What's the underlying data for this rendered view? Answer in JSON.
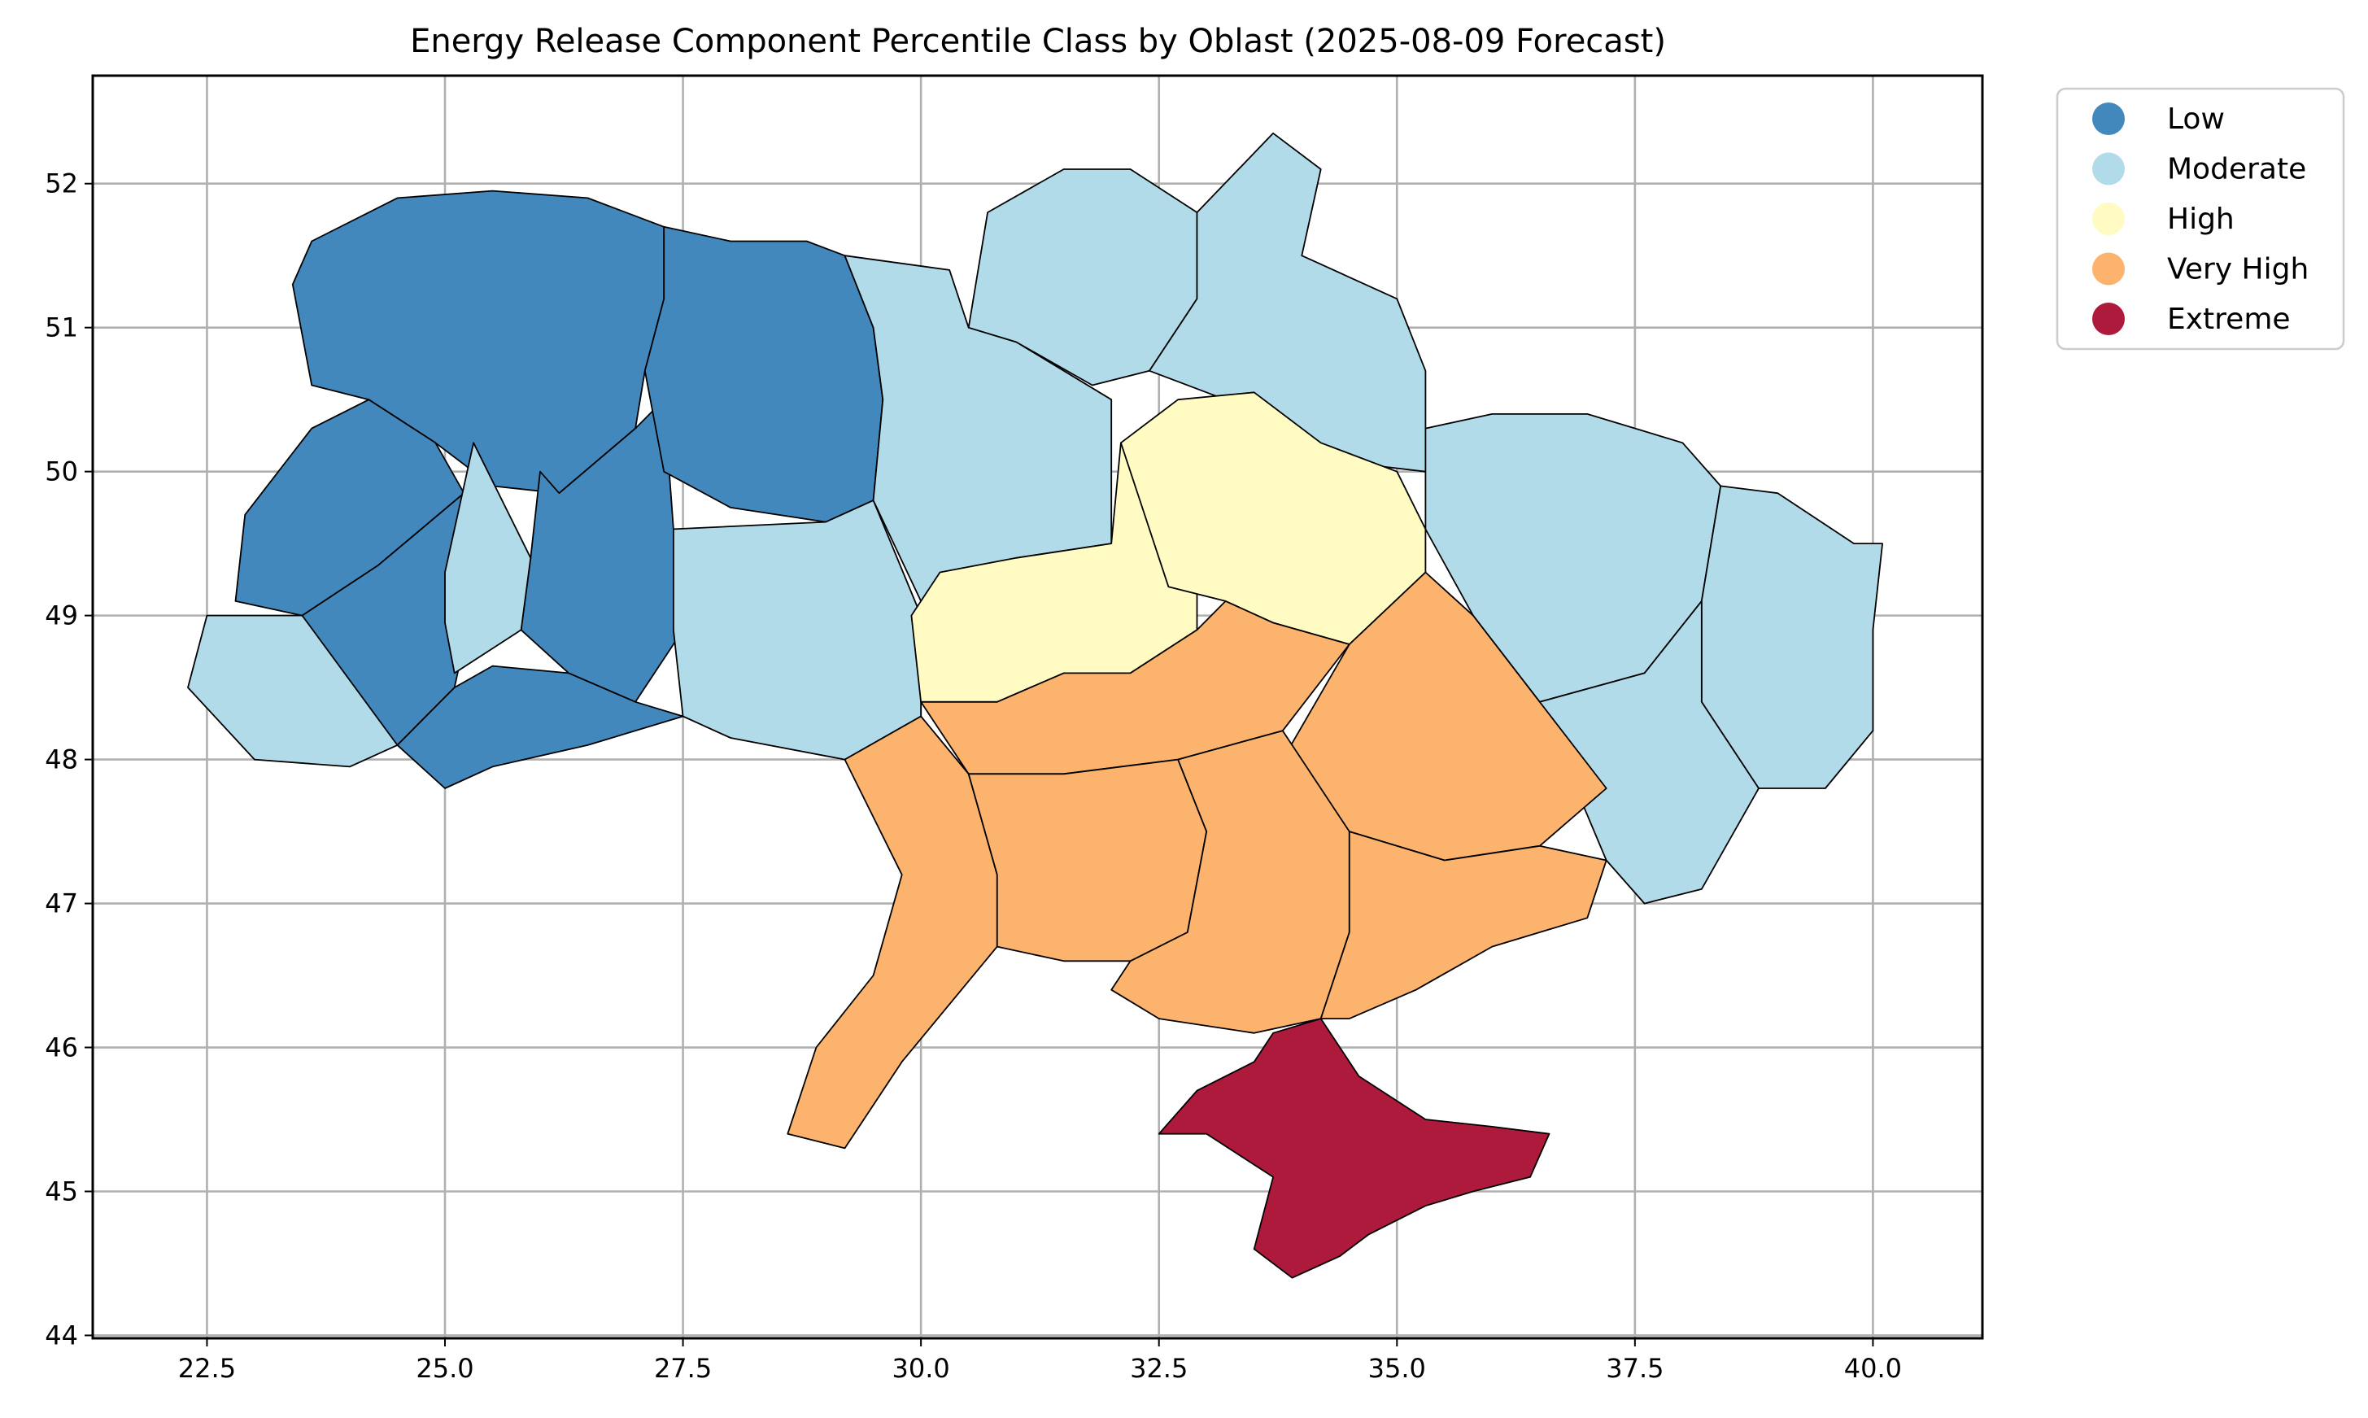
{
  "chart_data": {
    "type": "choropleth",
    "title": "Energy Release Component Percentile Class by Oblast (2025-08-09 Forecast)",
    "xlabel": "",
    "ylabel": "",
    "xlim": [
      21.3,
      41.15
    ],
    "ylim": [
      43.98,
      52.75
    ],
    "x_ticks": [
      "22.5",
      "25.0",
      "27.5",
      "30.0",
      "32.5",
      "35.0",
      "37.5",
      "40.0"
    ],
    "y_ticks": [
      "44",
      "45",
      "46",
      "47",
      "48",
      "49",
      "50",
      "51",
      "52"
    ],
    "grid": true,
    "legend_position": "outside-right-top",
    "classes": [
      {
        "name": "Low",
        "color": "#4288bd"
      },
      {
        "name": "Moderate",
        "color": "#b2dbea"
      },
      {
        "name": "High",
        "color": "#fffbc2"
      },
      {
        "name": "Very High",
        "color": "#fbb36e"
      },
      {
        "name": "Extreme",
        "color": "#ad1a3c"
      }
    ],
    "regions": [
      {
        "class": "Low",
        "lonlat": [
          [
            23.6,
            51.6
          ],
          [
            24.5,
            51.9
          ],
          [
            25.5,
            51.95
          ],
          [
            26.5,
            51.9
          ],
          [
            27.3,
            51.7
          ],
          [
            27.3,
            51.2
          ],
          [
            27.1,
            50.7
          ],
          [
            27.0,
            50.3
          ],
          [
            26.2,
            49.85
          ],
          [
            25.5,
            49.9
          ],
          [
            24.9,
            50.2
          ],
          [
            24.2,
            50.5
          ],
          [
            23.6,
            50.6
          ],
          [
            23.4,
            51.3
          ]
        ]
      },
      {
        "class": "Low",
        "lonlat": [
          [
            24.2,
            50.5
          ],
          [
            24.9,
            50.2
          ],
          [
            25.2,
            49.85
          ],
          [
            24.3,
            49.35
          ],
          [
            23.5,
            49.0
          ],
          [
            22.8,
            49.1
          ],
          [
            22.9,
            49.7
          ],
          [
            23.6,
            50.3
          ]
        ]
      },
      {
        "class": "Low",
        "lonlat": [
          [
            26.0,
            50.0
          ],
          [
            26.2,
            49.85
          ],
          [
            27.0,
            50.3
          ],
          [
            27.3,
            50.5
          ],
          [
            27.4,
            49.6
          ],
          [
            27.5,
            48.9
          ],
          [
            27.0,
            48.4
          ],
          [
            26.3,
            48.6
          ],
          [
            25.8,
            48.9
          ],
          [
            25.9,
            49.4
          ]
        ]
      },
      {
        "class": "Low",
        "lonlat": [
          [
            24.3,
            49.35
          ],
          [
            25.2,
            49.85
          ],
          [
            25.3,
            49.1
          ],
          [
            25.1,
            48.5
          ],
          [
            24.5,
            48.1
          ],
          [
            24.0,
            48.3
          ],
          [
            23.5,
            49.0
          ]
        ]
      },
      {
        "class": "Low",
        "lonlat": [
          [
            25.1,
            48.5
          ],
          [
            25.5,
            48.65
          ],
          [
            26.3,
            48.6
          ],
          [
            27.0,
            48.4
          ],
          [
            27.5,
            48.3
          ],
          [
            26.5,
            48.1
          ],
          [
            25.5,
            47.95
          ],
          [
            25.0,
            47.8
          ],
          [
            24.5,
            48.1
          ]
        ]
      },
      {
        "class": "Low",
        "lonlat": [
          [
            27.3,
            51.7
          ],
          [
            28.0,
            51.6
          ],
          [
            28.8,
            51.6
          ],
          [
            29.2,
            51.5
          ],
          [
            29.5,
            51.0
          ],
          [
            29.6,
            50.5
          ],
          [
            29.5,
            49.8
          ],
          [
            29.0,
            49.65
          ],
          [
            28.0,
            49.75
          ],
          [
            27.3,
            50.0
          ],
          [
            27.1,
            50.7
          ],
          [
            27.3,
            51.2
          ]
        ]
      },
      {
        "class": "Moderate",
        "lonlat": [
          [
            22.3,
            48.5
          ],
          [
            22.5,
            49.0
          ],
          [
            23.5,
            49.0
          ],
          [
            24.5,
            48.1
          ],
          [
            24.0,
            47.95
          ],
          [
            23.0,
            48.0
          ]
        ]
      },
      {
        "class": "Moderate",
        "lonlat": [
          [
            25.0,
            49.3
          ],
          [
            25.3,
            50.2
          ],
          [
            25.9,
            49.4
          ],
          [
            25.8,
            48.9
          ],
          [
            25.1,
            48.6
          ],
          [
            25.0,
            48.95
          ]
        ]
      },
      {
        "class": "Moderate",
        "lonlat": [
          [
            27.4,
            49.6
          ],
          [
            29.0,
            49.65
          ],
          [
            29.5,
            49.8
          ],
          [
            30.0,
            49.0
          ],
          [
            30.0,
            48.3
          ],
          [
            29.2,
            48.0
          ],
          [
            28.0,
            48.15
          ],
          [
            27.5,
            48.3
          ],
          [
            27.4,
            48.9
          ]
        ]
      },
      {
        "class": "Moderate",
        "lonlat": [
          [
            29.2,
            51.5
          ],
          [
            30.3,
            51.4
          ],
          [
            30.5,
            51.0
          ],
          [
            31.0,
            50.9
          ],
          [
            32.0,
            50.5
          ],
          [
            32.0,
            49.5
          ],
          [
            31.0,
            49.4
          ],
          [
            30.0,
            49.1
          ],
          [
            29.5,
            49.8
          ],
          [
            29.6,
            50.5
          ],
          [
            29.5,
            51.0
          ]
        ]
      },
      {
        "class": "Moderate",
        "lonlat": [
          [
            30.5,
            51.0
          ],
          [
            30.7,
            51.8
          ],
          [
            31.5,
            52.1
          ],
          [
            32.2,
            52.1
          ],
          [
            32.9,
            51.8
          ],
          [
            32.9,
            51.2
          ],
          [
            32.4,
            50.7
          ],
          [
            31.8,
            50.6
          ],
          [
            31.0,
            50.9
          ]
        ]
      },
      {
        "class": "Moderate",
        "lonlat": [
          [
            32.9,
            51.8
          ],
          [
            33.7,
            52.35
          ],
          [
            34.2,
            52.1
          ],
          [
            34.0,
            51.5
          ],
          [
            35.0,
            51.2
          ],
          [
            35.3,
            50.7
          ],
          [
            35.3,
            50.0
          ],
          [
            34.0,
            50.1
          ],
          [
            33.2,
            50.5
          ],
          [
            32.4,
            50.7
          ],
          [
            32.9,
            51.2
          ]
        ]
      },
      {
        "class": "Moderate",
        "lonlat": [
          [
            35.3,
            50.0
          ],
          [
            35.3,
            50.3
          ],
          [
            36.0,
            50.4
          ],
          [
            37.0,
            50.4
          ],
          [
            38.0,
            50.2
          ],
          [
            38.4,
            49.9
          ],
          [
            38.2,
            49.1
          ],
          [
            37.6,
            48.6
          ],
          [
            36.5,
            48.4
          ],
          [
            35.8,
            49.0
          ],
          [
            35.3,
            49.6
          ]
        ]
      },
      {
        "class": "Moderate",
        "lonlat": [
          [
            38.2,
            49.1
          ],
          [
            38.4,
            49.9
          ],
          [
            39.0,
            49.85
          ],
          [
            39.8,
            49.5
          ],
          [
            40.1,
            49.5
          ],
          [
            40.0,
            48.9
          ],
          [
            40.0,
            48.2
          ],
          [
            39.5,
            47.8
          ],
          [
            38.8,
            47.8
          ],
          [
            38.2,
            48.4
          ]
        ]
      },
      {
        "class": "Moderate",
        "lonlat": [
          [
            37.6,
            48.6
          ],
          [
            38.2,
            49.1
          ],
          [
            38.2,
            48.4
          ],
          [
            38.8,
            47.8
          ],
          [
            38.2,
            47.1
          ],
          [
            37.6,
            47.0
          ],
          [
            37.2,
            47.3
          ],
          [
            36.5,
            48.4
          ]
        ]
      },
      {
        "class": "High",
        "lonlat": [
          [
            29.9,
            49.0
          ],
          [
            30.2,
            49.3
          ],
          [
            31.0,
            49.4
          ],
          [
            32.0,
            49.5
          ],
          [
            32.1,
            50.2
          ],
          [
            32.5,
            50.1
          ],
          [
            32.9,
            49.5
          ],
          [
            32.9,
            48.9
          ],
          [
            32.2,
            48.6
          ],
          [
            31.5,
            48.6
          ],
          [
            30.8,
            48.4
          ],
          [
            30.0,
            48.4
          ]
        ]
      },
      {
        "class": "High",
        "lonlat": [
          [
            32.1,
            50.2
          ],
          [
            32.7,
            50.5
          ],
          [
            33.5,
            50.55
          ],
          [
            34.2,
            50.2
          ],
          [
            35.0,
            50.0
          ],
          [
            35.3,
            49.6
          ],
          [
            35.3,
            49.3
          ],
          [
            34.5,
            48.8
          ],
          [
            33.7,
            48.95
          ],
          [
            33.2,
            49.1
          ],
          [
            32.6,
            49.2
          ]
        ]
      },
      {
        "class": "Very High",
        "lonlat": [
          [
            30.0,
            48.4
          ],
          [
            30.8,
            48.4
          ],
          [
            31.5,
            48.6
          ],
          [
            32.2,
            48.6
          ],
          [
            32.9,
            48.9
          ],
          [
            33.2,
            49.1
          ],
          [
            33.7,
            48.95
          ],
          [
            34.5,
            48.8
          ],
          [
            33.8,
            48.2
          ],
          [
            32.7,
            48.0
          ],
          [
            31.5,
            47.9
          ],
          [
            30.5,
            47.9
          ]
        ]
      },
      {
        "class": "Very High",
        "lonlat": [
          [
            34.5,
            48.8
          ],
          [
            35.3,
            49.3
          ],
          [
            35.8,
            49.0
          ],
          [
            36.5,
            48.4
          ],
          [
            37.2,
            47.8
          ],
          [
            36.5,
            47.4
          ],
          [
            35.5,
            47.3
          ],
          [
            34.5,
            47.5
          ],
          [
            33.8,
            48.0
          ]
        ]
      },
      {
        "class": "Very High",
        "lonlat": [
          [
            29.2,
            48.0
          ],
          [
            30.0,
            48.3
          ],
          [
            30.5,
            47.9
          ],
          [
            30.8,
            47.2
          ],
          [
            30.8,
            46.7
          ],
          [
            30.3,
            46.3
          ],
          [
            29.8,
            45.9
          ],
          [
            29.2,
            45.3
          ],
          [
            28.6,
            45.4
          ],
          [
            28.9,
            46.0
          ],
          [
            29.5,
            46.5
          ],
          [
            29.8,
            47.2
          ]
        ]
      },
      {
        "class": "Very High",
        "lonlat": [
          [
            30.5,
            47.9
          ],
          [
            31.5,
            47.9
          ],
          [
            32.7,
            48.0
          ],
          [
            33.0,
            47.5
          ],
          [
            32.8,
            46.8
          ],
          [
            32.2,
            46.6
          ],
          [
            31.5,
            46.6
          ],
          [
            30.8,
            46.7
          ],
          [
            30.8,
            47.2
          ]
        ]
      },
      {
        "class": "Very High",
        "lonlat": [
          [
            32.7,
            48.0
          ],
          [
            33.8,
            48.2
          ],
          [
            34.5,
            47.5
          ],
          [
            34.5,
            46.8
          ],
          [
            34.2,
            46.2
          ],
          [
            33.5,
            46.1
          ],
          [
            32.5,
            46.2
          ],
          [
            32.0,
            46.4
          ],
          [
            32.2,
            46.6
          ],
          [
            32.8,
            46.8
          ],
          [
            33.0,
            47.5
          ]
        ]
      },
      {
        "class": "Very High",
        "lonlat": [
          [
            34.5,
            47.5
          ],
          [
            35.5,
            47.3
          ],
          [
            36.5,
            47.4
          ],
          [
            37.2,
            47.3
          ],
          [
            37.0,
            46.9
          ],
          [
            36.0,
            46.7
          ],
          [
            35.2,
            46.4
          ],
          [
            34.5,
            46.2
          ],
          [
            34.2,
            46.2
          ],
          [
            34.5,
            46.8
          ]
        ]
      },
      {
        "class": "Extreme",
        "lonlat": [
          [
            33.7,
            46.1
          ],
          [
            34.2,
            46.2
          ],
          [
            34.6,
            45.8
          ],
          [
            35.3,
            45.5
          ],
          [
            36.0,
            45.45
          ],
          [
            36.6,
            45.4
          ],
          [
            36.4,
            45.1
          ],
          [
            35.8,
            45.0
          ],
          [
            35.3,
            44.9
          ],
          [
            34.7,
            44.7
          ],
          [
            34.4,
            44.55
          ],
          [
            33.9,
            44.4
          ],
          [
            33.5,
            44.6
          ],
          [
            33.7,
            45.1
          ],
          [
            33.0,
            45.4
          ],
          [
            32.5,
            45.4
          ],
          [
            32.9,
            45.7
          ],
          [
            33.5,
            45.9
          ]
        ]
      }
    ]
  }
}
